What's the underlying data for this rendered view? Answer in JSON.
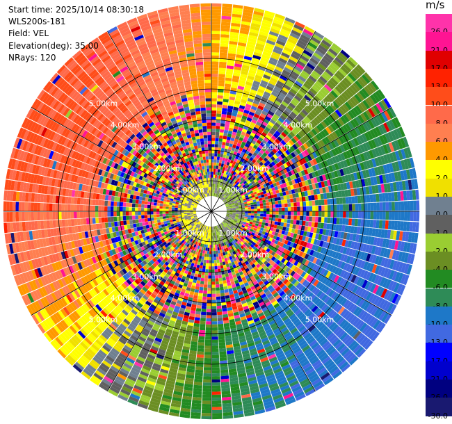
{
  "header": {
    "start_time": "Start time: 2025/10/14 08:30:18",
    "site": "WLS200s-181",
    "field": "Field: VEL",
    "elevation": "Elevation(deg): 35.00",
    "nrays": "NRays: 120"
  },
  "chart_data": {
    "type": "heatmap",
    "projection": "polar-ppi",
    "title": "",
    "rays": 120,
    "range_rings_km": [
      1.0,
      2.0,
      3.0,
      4.0,
      5.0
    ],
    "range_ring_labels": [
      "1.00km",
      "2.00km",
      "3.00km",
      "4.00km",
      "5.00km"
    ],
    "max_range_km": 6.8,
    "azimuth_lines_deg": [
      0,
      30,
      60,
      90,
      120,
      150,
      180,
      210,
      240,
      270,
      300,
      330
    ],
    "colorbar": {
      "unit": "m/s",
      "ticks": [
        "26.0",
        "21.0",
        "17.0",
        "13.0",
        "10.0",
        "8.0",
        "6.0",
        "4.0",
        "2.0",
        "1.0",
        "0.0",
        "-1.0",
        "-2.0",
        "-4.0",
        "-6.0",
        "-8.0",
        "-10.0",
        "-13.0",
        "-17.0",
        "-21.0",
        "-26.0",
        "-30.0"
      ],
      "colors": [
        "#ff33aa",
        "#ff1493",
        "#e00000",
        "#ff2200",
        "#ff4d1a",
        "#ff6a4a",
        "#ff7f50",
        "#ff9900",
        "#ffff00",
        "#f0e000",
        "#708090",
        "#606060",
        "#9acd32",
        "#6b8e23",
        "#228b22",
        "#2e8b57",
        "#1e78c8",
        "#4169e1",
        "#0000ff",
        "#0000cd",
        "#000080",
        "#191970"
      ]
    },
    "velocity_pattern": {
      "positive_max_azimuth_deg": 300,
      "positive_max_ms": 10,
      "negative_max_azimuth_deg": 140,
      "negative_max_ms": -10,
      "noise_gates_from_km": 0.5,
      "noise_gates_to_km": 3.3
    }
  }
}
